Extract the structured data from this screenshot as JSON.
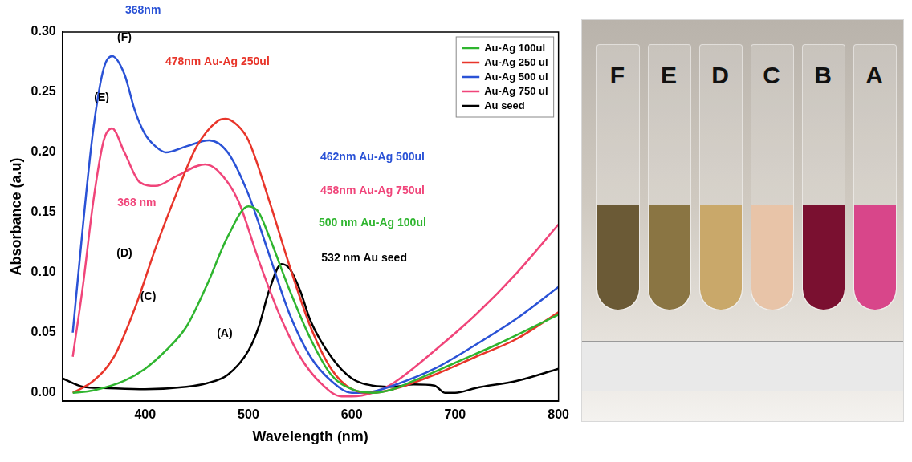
{
  "chart_data": {
    "type": "line",
    "x_label": "Wavelength (nm)",
    "y_label": "Absorbance (a.u)",
    "xlim": [
      320,
      800
    ],
    "xticks": [
      400,
      500,
      600,
      700,
      800
    ],
    "ylim": [
      -0.007,
      0.3
    ],
    "yticks": [
      {
        "value": 0,
        "label": "0.00"
      },
      {
        "value": 0.05,
        "label": "0.05"
      },
      {
        "value": 0.1,
        "label": "0.10"
      },
      {
        "value": 0.15,
        "label": "0.15"
      },
      {
        "value": 0.2,
        "label": "0.20"
      },
      {
        "value": 0.25,
        "label": "0.25"
      },
      {
        "value": 0.3,
        "label": "0.30"
      }
    ],
    "grid": false,
    "legend": "upper right",
    "series": [
      {
        "name": "Au-Ag 100ul",
        "color": "#2fb52f",
        "x": [
          330,
          350,
          380,
          400,
          420,
          440,
          460,
          480,
          500,
          510,
          520,
          540,
          560,
          580,
          600,
          620,
          640,
          660,
          700,
          740,
          800
        ],
        "values": [
          0.0,
          0.002,
          0.01,
          0.02,
          0.035,
          0.055,
          0.09,
          0.13,
          0.155,
          0.15,
          0.13,
          0.085,
          0.045,
          0.015,
          0.003,
          0.0,
          0.003,
          0.01,
          0.025,
          0.04,
          0.065
        ]
      },
      {
        "name": "Au-Ag 250 ul",
        "color": "#e8352a",
        "x": [
          330,
          350,
          370,
          390,
          410,
          430,
          450,
          470,
          478,
          490,
          500,
          520,
          540,
          560,
          580,
          600,
          620,
          640,
          680,
          720,
          760,
          800
        ],
        "values": [
          0.0,
          0.01,
          0.03,
          0.07,
          0.12,
          0.165,
          0.205,
          0.226,
          0.228,
          0.222,
          0.21,
          0.16,
          0.105,
          0.055,
          0.02,
          0.003,
          0.0,
          0.003,
          0.015,
          0.03,
          0.045,
          0.067
        ]
      },
      {
        "name": "Au-Ag 500 ul",
        "color": "#2a52d6",
        "x": [
          330,
          340,
          350,
          360,
          368,
          380,
          390,
          400,
          410,
          420,
          440,
          462,
          480,
          500,
          520,
          540,
          560,
          580,
          600,
          620,
          640,
          680,
          720,
          760,
          800
        ],
        "values": [
          0.05,
          0.14,
          0.22,
          0.27,
          0.28,
          0.265,
          0.235,
          0.215,
          0.205,
          0.2,
          0.205,
          0.21,
          0.2,
          0.165,
          0.115,
          0.065,
          0.03,
          0.01,
          0.0,
          0.001,
          0.006,
          0.02,
          0.04,
          0.062,
          0.088
        ]
      },
      {
        "name": "Au-Ag 750 ul",
        "color": "#f0457a",
        "x": [
          330,
          340,
          350,
          360,
          368,
          380,
          395,
          410,
          430,
          458,
          470,
          490,
          510,
          530,
          550,
          570,
          590,
          600,
          620,
          640,
          680,
          720,
          760,
          800
        ],
        "values": [
          0.03,
          0.09,
          0.16,
          0.21,
          0.22,
          0.2,
          0.175,
          0.172,
          0.18,
          0.19,
          0.185,
          0.16,
          0.11,
          0.065,
          0.03,
          0.008,
          -0.003,
          -0.003,
          0.0,
          0.008,
          0.035,
          0.065,
          0.1,
          0.14
        ]
      },
      {
        "name": "Au seed",
        "color": "#000000",
        "x": [
          320,
          340,
          360,
          400,
          440,
          460,
          480,
          500,
          510,
          520,
          532,
          540,
          550,
          560,
          580,
          600,
          620,
          640,
          660,
          680,
          690,
          700,
          720,
          760,
          800
        ],
        "values": [
          0.012,
          0.005,
          0.004,
          0.003,
          0.005,
          0.008,
          0.015,
          0.035,
          0.055,
          0.085,
          0.107,
          0.103,
          0.085,
          0.06,
          0.03,
          0.012,
          0.006,
          0.005,
          0.007,
          0.006,
          0.0,
          0.0,
          0.004,
          0.01,
          0.02
        ]
      }
    ],
    "annotations": [
      {
        "text": "368nm",
        "x": 398,
        "y": 0.318,
        "color": "#2a52d6"
      },
      {
        "text": "(F)",
        "x": 380,
        "y": 0.295,
        "color": "#000000"
      },
      {
        "text": "478nm Au-Ag 250ul",
        "x": 470,
        "y": 0.275,
        "color": "#e8352a"
      },
      {
        "text": "(E)",
        "x": 358,
        "y": 0.245,
        "color": "#000000"
      },
      {
        "text": "462nm Au-Ag 500ul",
        "x": 620,
        "y": 0.196,
        "color": "#2a52d6"
      },
      {
        "text": "368 nm",
        "x": 392,
        "y": 0.158,
        "color": "#f0457a"
      },
      {
        "text": "458nm Au-Ag 750ul",
        "x": 620,
        "y": 0.168,
        "color": "#f0457a"
      },
      {
        "text": "500 nm Au-Ag 100ul",
        "x": 620,
        "y": 0.141,
        "color": "#2fb52f"
      },
      {
        "text": "(D)",
        "x": 380,
        "y": 0.116,
        "color": "#000000"
      },
      {
        "text": "532 nm Au seed",
        "x": 612,
        "y": 0.112,
        "color": "#000000"
      },
      {
        "text": "(C)",
        "x": 403,
        "y": 0.08,
        "color": "#000000"
      },
      {
        "text": "(A)",
        "x": 477,
        "y": 0.049,
        "color": "#000000"
      }
    ]
  },
  "photo": {
    "labels": [
      "F",
      "E",
      "D",
      "C",
      "B",
      "A"
    ],
    "colors": [
      "#6b5a36",
      "#8a7543",
      "#c9a86a",
      "#e8c4a8",
      "#7a1030",
      "#d8468a"
    ]
  }
}
